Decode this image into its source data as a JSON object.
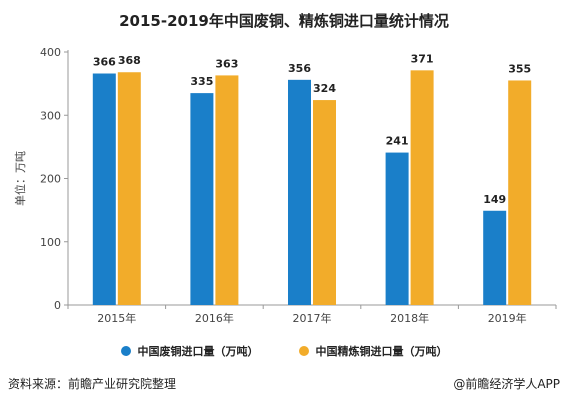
{
  "chart_data": {
    "type": "bar",
    "title": "2015-2019年中国废铜、精炼铜进口量统计情况",
    "ylabel": "单位：万吨",
    "xlabel": "",
    "categories": [
      "2015年",
      "2016年",
      "2017年",
      "2018年",
      "2019年"
    ],
    "series": [
      {
        "name": "中国废铜进口量（万吨）",
        "color": "#1a7fc9",
        "values": [
          366,
          335,
          356,
          241,
          149
        ]
      },
      {
        "name": "中国精炼铜进口量（万吨）",
        "color": "#f2ac2a",
        "values": [
          368,
          363,
          324,
          371,
          355
        ]
      }
    ],
    "ylim": [
      0,
      400
    ],
    "yticks": [
      0,
      100,
      200,
      300,
      400
    ],
    "grid": false,
    "legend": "bottom"
  },
  "footer": {
    "source": "资料来源：前瞻产业研究院整理",
    "brand": "@前瞻经济学人APP"
  }
}
